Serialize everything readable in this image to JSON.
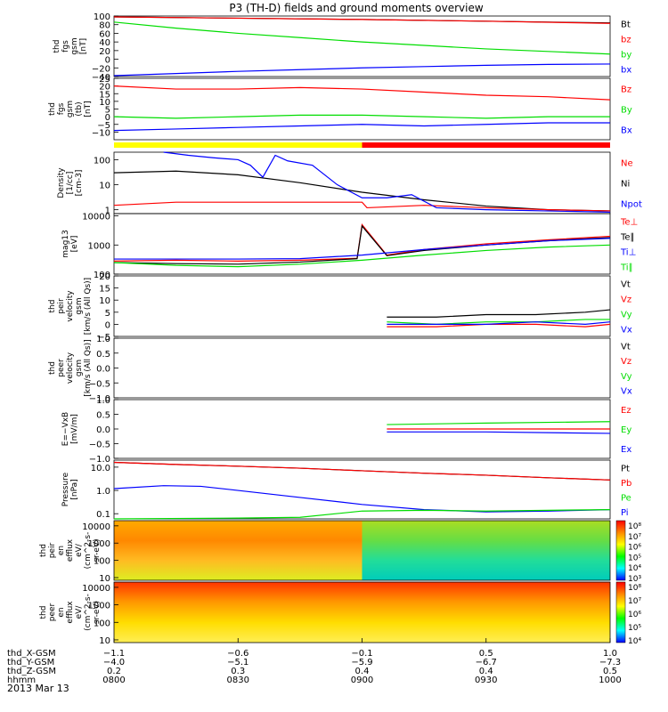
{
  "title": "P3 (TH-D) fields and ground moments overview",
  "date_label": "2013 Mar 13",
  "colors": {
    "black": "#000000",
    "red": "#ff0000",
    "green": "#00dd00",
    "blue": "#0000ff",
    "yellow": "#ffff00",
    "text": "#000000"
  },
  "chart_data": [
    {
      "type": "line",
      "ylabel_lines": [
        "thd",
        "fgs",
        "gsm",
        "[nT]"
      ],
      "ylim": [
        -40,
        100
      ],
      "yscale": "linear",
      "yticks": [
        "100",
        "80",
        "60",
        "40",
        "20",
        "0",
        "−20",
        "−40"
      ],
      "ytick_vals": [
        100,
        80,
        60,
        40,
        20,
        0,
        -20,
        -40
      ],
      "legend": [
        {
          "label": "Bt",
          "color": "#000000"
        },
        {
          "label": "bz",
          "color": "#ff0000"
        },
        {
          "label": "by",
          "color": "#00dd00"
        },
        {
          "label": "bx",
          "color": "#0000ff"
        }
      ],
      "series": [
        {
          "name": "Bt",
          "color": "#000000",
          "x": [
            0,
            0.5,
            1,
            1.5,
            2
          ],
          "values": [
            98,
            95,
            92,
            88,
            84
          ]
        },
        {
          "name": "bz",
          "color": "#ff0000",
          "x": [
            0,
            0.5,
            1,
            1.5,
            2
          ],
          "values": [
            98,
            95,
            92,
            88,
            83
          ]
        },
        {
          "name": "by",
          "color": "#00dd00",
          "x": [
            0,
            0.25,
            0.5,
            0.75,
            1,
            1.25,
            1.5,
            1.75,
            2
          ],
          "values": [
            86,
            72,
            60,
            50,
            40,
            32,
            24,
            18,
            12
          ]
        },
        {
          "name": "bx",
          "color": "#0000ff",
          "x": [
            0,
            0.25,
            0.5,
            0.75,
            1,
            1.25,
            1.5,
            1.75,
            2
          ],
          "values": [
            -38,
            -33,
            -28,
            -24,
            -20,
            -17,
            -14,
            -12,
            -11
          ]
        }
      ]
    },
    {
      "type": "line",
      "ylabel_lines": [
        "thd",
        "fgs",
        "gsm",
        "(tb)",
        "[nT]"
      ],
      "ylim": [
        -15,
        25
      ],
      "yscale": "linear",
      "yticks": [
        "25",
        "20",
        "15",
        "10",
        "5",
        "0",
        "−5",
        "−10"
      ],
      "ytick_vals": [
        25,
        20,
        15,
        10,
        5,
        0,
        -5,
        -10
      ],
      "legend": [
        {
          "label": "Bz",
          "color": "#ff0000"
        },
        {
          "label": "By",
          "color": "#00dd00"
        },
        {
          "label": "Bx",
          "color": "#0000ff"
        }
      ],
      "series": [
        {
          "name": "Bz",
          "color": "#ff0000",
          "x": [
            0,
            0.25,
            0.5,
            0.75,
            1,
            1.25,
            1.5,
            1.75,
            2
          ],
          "values": [
            20,
            18,
            18,
            19,
            18,
            16,
            14,
            13,
            11
          ]
        },
        {
          "name": "By",
          "color": "#00dd00",
          "x": [
            0,
            0.25,
            0.5,
            0.75,
            1,
            1.25,
            1.5,
            1.75,
            2
          ],
          "values": [
            0,
            -1,
            0,
            1,
            1,
            0,
            -1,
            0,
            0
          ]
        },
        {
          "name": "Bx",
          "color": "#0000ff",
          "x": [
            0,
            0.25,
            0.5,
            0.75,
            1,
            1.25,
            1.5,
            1.75,
            2
          ],
          "values": [
            -9,
            -8,
            -7,
            -6,
            -5,
            -6,
            -5,
            -4,
            -4
          ]
        }
      ]
    },
    {
      "type": "bar_strip",
      "segments": [
        {
          "x0": 0,
          "x1": 1,
          "color": "#ffff00"
        },
        {
          "x0": 1,
          "x1": 2,
          "color": "#ff0000"
        }
      ]
    },
    {
      "type": "line",
      "ylabel_lines": [
        "Density",
        "[1/cc]",
        "[cm-3]"
      ],
      "ylim": [
        0.7,
        200
      ],
      "yscale": "log",
      "yticks": [
        "100",
        "10",
        "1"
      ],
      "ytick_vals": [
        100,
        10,
        1
      ],
      "legend": [
        {
          "label": "Ne",
          "color": "#ff0000"
        },
        {
          "label": "Ni",
          "color": "#000000"
        },
        {
          "label": "Npot",
          "color": "#0000ff"
        }
      ],
      "series": [
        {
          "name": "Ni",
          "color": "#000000",
          "x": [
            0,
            0.25,
            0.5,
            0.75,
            1,
            1.25,
            1.5,
            1.75,
            2
          ],
          "values": [
            30,
            35,
            25,
            12,
            5,
            2.5,
            1.4,
            1.0,
            0.9
          ]
        },
        {
          "name": "Ne",
          "color": "#ff0000",
          "x": [
            0,
            0.25,
            0.5,
            0.75,
            1,
            1.02,
            1.25,
            1.5,
            1.75,
            2
          ],
          "values": [
            1.5,
            2,
            2,
            2,
            2,
            1.2,
            1.5,
            1.2,
            1.0,
            0.9
          ]
        },
        {
          "name": "Npot",
          "color": "#0000ff",
          "x": [
            0.2,
            0.3,
            0.4,
            0.5,
            0.55,
            0.6,
            0.65,
            0.7,
            0.8,
            0.9,
            1.0,
            1.1,
            1.2,
            1.3,
            1.5,
            2
          ],
          "values": [
            200,
            150,
            120,
            100,
            60,
            20,
            150,
            90,
            60,
            10,
            3,
            3,
            4,
            1.2,
            1.0,
            0.8
          ]
        }
      ]
    },
    {
      "type": "line",
      "ylabel_lines": [
        "mag13",
        "[eV]"
      ],
      "ylim": [
        100,
        12000
      ],
      "yscale": "log",
      "yticks": [
        "10000",
        "1000",
        "100"
      ],
      "ytick_vals": [
        10000,
        1000,
        100
      ],
      "legend": [
        {
          "label": "Te⊥",
          "color": "#ff0000"
        },
        {
          "label": "Te∥",
          "color": "#000000"
        },
        {
          "label": "Ti⊥",
          "color": "#0000ff"
        },
        {
          "label": "Ti∥",
          "color": "#00dd00"
        }
      ],
      "series": [
        {
          "name": "Te⊥",
          "color": "#ff0000",
          "x": [
            0,
            0.25,
            0.5,
            0.75,
            0.98,
            1.0,
            1.1,
            1.25,
            1.5,
            1.75,
            2
          ],
          "values": [
            280,
            300,
            280,
            300,
            350,
            5000,
            450,
            700,
            1100,
            1500,
            2000
          ]
        },
        {
          "name": "Te∥",
          "color": "#000000",
          "x": [
            0,
            0.25,
            0.5,
            0.75,
            0.98,
            1.0,
            1.1,
            1.25,
            1.5,
            1.75,
            2
          ],
          "values": [
            250,
            230,
            220,
            260,
            340,
            4500,
            430,
            650,
            1000,
            1400,
            1800
          ]
        },
        {
          "name": "Ti⊥",
          "color": "#0000ff",
          "x": [
            0,
            0.25,
            0.5,
            0.75,
            1,
            1.25,
            1.5,
            1.75,
            2
          ],
          "values": [
            330,
            330,
            330,
            340,
            450,
            700,
            1000,
            1400,
            1700
          ]
        },
        {
          "name": "Ti∥",
          "color": "#00dd00",
          "x": [
            0,
            0.25,
            0.5,
            0.75,
            1,
            1.25,
            1.5,
            1.75,
            2
          ],
          "values": [
            250,
            200,
            180,
            220,
            300,
            450,
            650,
            850,
            1000
          ]
        }
      ]
    },
    {
      "type": "line",
      "ylabel_lines": [
        "thd",
        "peir",
        "velocity",
        "gsm",
        "[km/s (All Qs)]"
      ],
      "ylim": [
        -5,
        20
      ],
      "yscale": "linear",
      "yticks": [
        "20",
        "15",
        "10",
        "5",
        "0",
        "−5"
      ],
      "ytick_vals": [
        20,
        15,
        10,
        5,
        0,
        -5
      ],
      "legend": [
        {
          "label": "Vt",
          "color": "#000000"
        },
        {
          "label": "Vz",
          "color": "#ff0000"
        },
        {
          "label": "Vy",
          "color": "#00dd00"
        },
        {
          "label": "Vx",
          "color": "#0000ff"
        }
      ],
      "series": [
        {
          "name": "Vt",
          "color": "#000000",
          "x": [
            1.1,
            1.3,
            1.5,
            1.7,
            1.9,
            2
          ],
          "values": [
            3,
            3,
            4,
            4,
            5,
            6
          ]
        },
        {
          "name": "Vz",
          "color": "#ff0000",
          "x": [
            1.1,
            1.3,
            1.5,
            1.7,
            1.9,
            2
          ],
          "values": [
            -1,
            -1,
            0,
            0,
            -1,
            0
          ]
        },
        {
          "name": "Vy",
          "color": "#00dd00",
          "x": [
            1.1,
            1.3,
            1.5,
            1.7,
            1.9,
            2
          ],
          "values": [
            1,
            0,
            1,
            1,
            2,
            2
          ]
        },
        {
          "name": "Vx",
          "color": "#0000ff",
          "x": [
            1.1,
            1.3,
            1.5,
            1.7,
            1.9,
            2
          ],
          "values": [
            0,
            0,
            0,
            1,
            0,
            1
          ]
        }
      ]
    },
    {
      "type": "line",
      "ylabel_lines": [
        "thd",
        "peer",
        "velocity",
        "gsm",
        "[km/s (All Qs)]"
      ],
      "ylim": [
        -1.0,
        1.0
      ],
      "yscale": "linear",
      "yticks": [
        "1.0",
        "0.5",
        "0.0",
        "−0.5",
        "−1.0"
      ],
      "ytick_vals": [
        1.0,
        0.5,
        0.0,
        -0.5,
        -1.0
      ],
      "legend": [
        {
          "label": "Vt",
          "color": "#000000"
        },
        {
          "label": "Vz",
          "color": "#ff0000"
        },
        {
          "label": "Vy",
          "color": "#00dd00"
        },
        {
          "label": "Vx",
          "color": "#0000ff"
        }
      ],
      "series": []
    },
    {
      "type": "line",
      "ylabel_lines": [
        "E=−VxB",
        "[mV/m]"
      ],
      "ylim": [
        -1.0,
        1.0
      ],
      "yscale": "linear",
      "yticks": [
        "1.0",
        "0.5",
        "0.0",
        "−0.5",
        "−1.0"
      ],
      "ytick_vals": [
        1.0,
        0.5,
        0.0,
        -0.5,
        -1.0
      ],
      "legend": [
        {
          "label": "Ez",
          "color": "#ff0000"
        },
        {
          "label": "Ey",
          "color": "#00dd00"
        },
        {
          "label": "Ex",
          "color": "#0000ff"
        }
      ],
      "series": [
        {
          "name": "Ey",
          "color": "#00dd00",
          "x": [
            1.1,
            1.5,
            2
          ],
          "values": [
            0.15,
            0.2,
            0.25
          ]
        },
        {
          "name": "Ez",
          "color": "#ff0000",
          "x": [
            1.1,
            1.5,
            2
          ],
          "values": [
            0.0,
            0.0,
            0.0
          ]
        },
        {
          "name": "Ex",
          "color": "#0000ff",
          "x": [
            1.1,
            1.5,
            2
          ],
          "values": [
            -0.1,
            -0.1,
            -0.15
          ]
        }
      ]
    },
    {
      "type": "line",
      "ylabel_lines": [
        "Pressure",
        "[nPa]"
      ],
      "ylim": [
        0.06,
        20
      ],
      "yscale": "log",
      "yticks": [
        "10.0",
        "1.0",
        "0.1"
      ],
      "ytick_vals": [
        10,
        1,
        0.1
      ],
      "legend": [
        {
          "label": "Pt",
          "color": "#000000"
        },
        {
          "label": "Pb",
          "color": "#ff0000"
        },
        {
          "label": "Pe",
          "color": "#00dd00"
        },
        {
          "label": "Pi",
          "color": "#0000ff"
        }
      ],
      "series": [
        {
          "name": "Pt",
          "color": "#000000",
          "x": [
            0,
            0.25,
            0.5,
            0.75,
            1,
            1.25,
            1.5,
            1.75,
            2
          ],
          "values": [
            16,
            13,
            11,
            9,
            7,
            5.5,
            4.5,
            3.5,
            2.8
          ]
        },
        {
          "name": "Pb",
          "color": "#ff0000",
          "x": [
            0,
            0.25,
            0.5,
            0.75,
            1,
            1.25,
            1.5,
            1.75,
            2
          ],
          "values": [
            16,
            13,
            11,
            9,
            7,
            5.5,
            4.5,
            3.5,
            2.8
          ]
        },
        {
          "name": "Pi",
          "color": "#0000ff",
          "x": [
            0,
            0.2,
            0.35,
            0.5,
            0.75,
            1,
            1.25,
            1.5,
            1.75,
            2
          ],
          "values": [
            1.2,
            1.6,
            1.5,
            1.0,
            0.5,
            0.25,
            0.15,
            0.12,
            0.13,
            0.15
          ]
        },
        {
          "name": "Pe",
          "color": "#00dd00",
          "x": [
            0,
            0.5,
            0.75,
            1,
            1.25,
            1.5,
            1.75,
            2
          ],
          "values": [
            0.06,
            0.065,
            0.07,
            0.13,
            0.14,
            0.13,
            0.14,
            0.15
          ]
        }
      ]
    },
    {
      "type": "heatmap",
      "ylabel_lines": [
        "thd",
        "peir",
        "en",
        "efflux",
        "eV/",
        "(cm^2-s-",
        "sr-eV)"
      ],
      "ylim": [
        7,
        20000
      ],
      "yscale": "log",
      "yticks": [
        "10000",
        "1000",
        "100",
        "10"
      ],
      "ytick_vals": [
        10000,
        1000,
        100,
        10
      ],
      "colorbar": {
        "labels": [
          "10⁸",
          "10⁷",
          "10⁶",
          "10⁵",
          "10⁴",
          "10³"
        ]
      },
      "regions": [
        {
          "x0": 0,
          "x1": 1,
          "stops": [
            "#ffaa00",
            "#ff8800",
            "#ffbb22",
            "#ddee22"
          ]
        },
        {
          "x0": 1,
          "x1": 2,
          "stops": [
            "#aadd22",
            "#66dd44",
            "#22dd99",
            "#00ccbb"
          ]
        }
      ]
    },
    {
      "type": "heatmap",
      "ylabel_lines": [
        "thd",
        "peer",
        "en",
        "efflux",
        "eV/",
        "(cm^2-s-",
        "sr-eV)"
      ],
      "ylim": [
        7,
        20000
      ],
      "yscale": "log",
      "yticks": [
        "10000",
        "1000",
        "100",
        "10"
      ],
      "ytick_vals": [
        10000,
        1000,
        100,
        10
      ],
      "colorbar": {
        "labels": [
          "10⁸",
          "10⁷",
          "10⁶",
          "10⁵",
          "10⁴"
        ]
      },
      "regions": [
        {
          "x0": 0,
          "x1": 2,
          "stops": [
            "#ff3300",
            "#ff9900",
            "#ffdd00",
            "#ffee55"
          ]
        }
      ]
    }
  ],
  "xaxis": {
    "tick_labels": [
      "0800",
      "0830",
      "0900",
      "0930",
      "1000"
    ],
    "rows": [
      {
        "label": "thd_X-GSM",
        "values": [
          "−1.1",
          "−0.6",
          "−0.1",
          "0.5",
          "1.0"
        ]
      },
      {
        "label": "thd_Y-GSM",
        "values": [
          "−4.0",
          "−5.1",
          "−5.9",
          "−6.7",
          "−7.3"
        ]
      },
      {
        "label": "thd_Z-GSM",
        "values": [
          "0.2",
          "0.3",
          "0.4",
          "0.4",
          "0.5"
        ]
      },
      {
        "label": "hhmm",
        "values": [
          "0800",
          "0830",
          "0900",
          "0930",
          "1000"
        ]
      }
    ]
  }
}
